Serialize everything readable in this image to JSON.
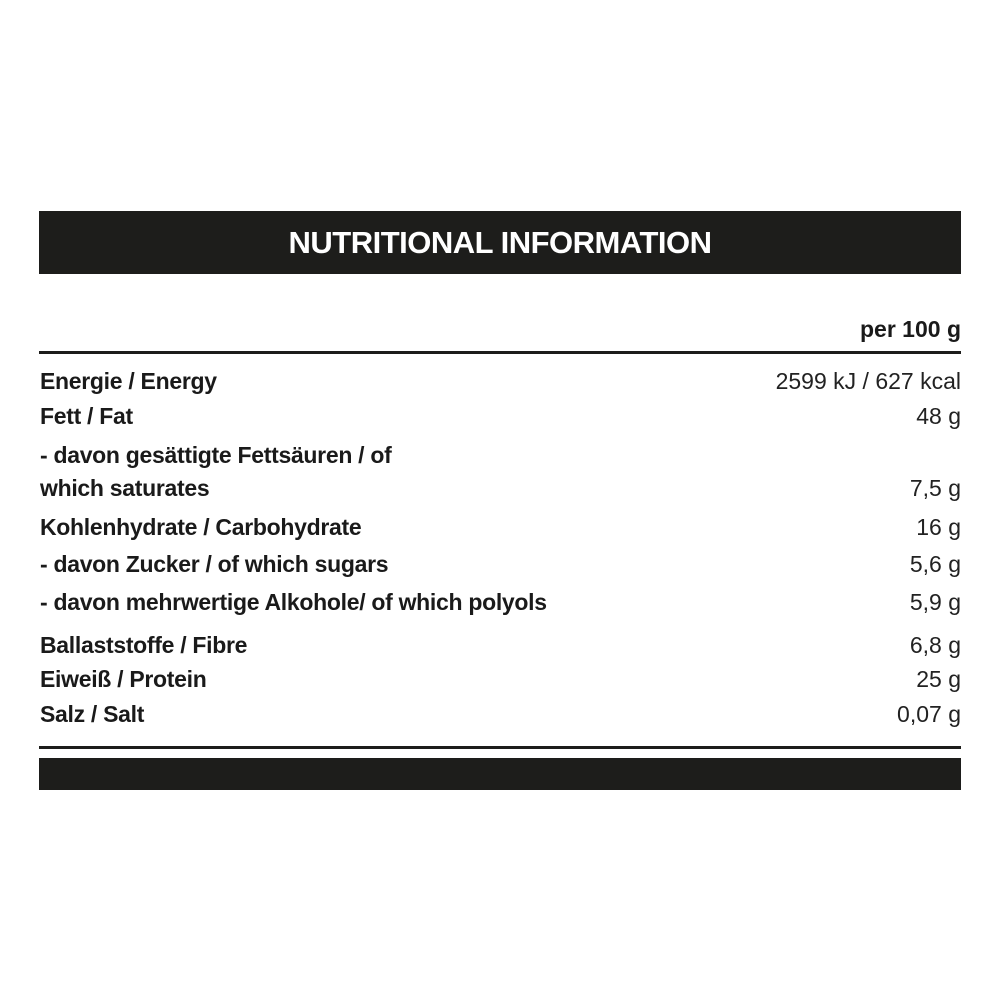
{
  "title": "NUTRITIONAL INFORMATION",
  "column_header": "per 100 g",
  "rows": [
    {
      "label": "Energie / Energy",
      "value": "2599 kJ / 627 kcal"
    },
    {
      "label": "Fett / Fat",
      "value": "48 g"
    },
    {
      "label": "- davon gesättigte Fettsäuren / of",
      "label2": "which saturates",
      "value": "7,5 g"
    },
    {
      "label": "Kohlenhydrate / Carbohydrate",
      "value": "16 g"
    },
    {
      "label": "- davon Zucker / of which sugars",
      "value": "5,6 g"
    },
    {
      "label": "- davon mehrwertige Alkohole/ of which polyols",
      "value": "5,9 g"
    },
    {
      "label": "Ballaststoffe / Fibre",
      "value": "6,8 g"
    },
    {
      "label": "Eiweiß / Protein",
      "value": "25 g"
    },
    {
      "label": "Salz / Salt",
      "value": "0,07 g"
    }
  ]
}
